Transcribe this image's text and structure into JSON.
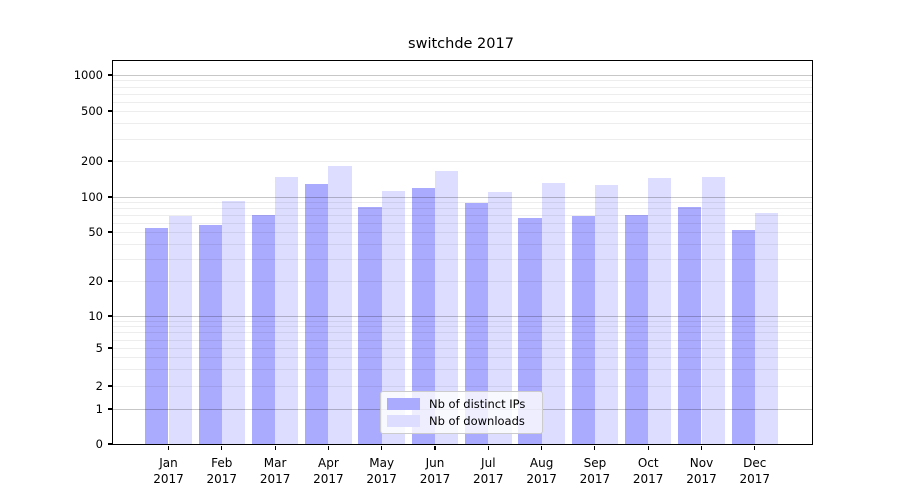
{
  "title": "switchde 2017",
  "chart_data": {
    "type": "bar",
    "title": "switchde 2017",
    "categories": [
      "Jan",
      "Feb",
      "Mar",
      "Apr",
      "May",
      "Jun",
      "Jul",
      "Aug",
      "Sep",
      "Oct",
      "Nov",
      "Dec"
    ],
    "categories_year": "2017",
    "series": [
      {
        "name": "Nb of distinct IPs",
        "color": "#aaaaff",
        "values": [
          54,
          58,
          70,
          128,
          82,
          118,
          89,
          66,
          68,
          70,
          82,
          52
        ]
      },
      {
        "name": "Nb of downloads",
        "color": "#ddddff",
        "values": [
          68,
          92,
          147,
          183,
          112,
          165,
          110,
          132,
          127,
          143,
          147,
          73
        ]
      }
    ],
    "yscale": "symlog",
    "ylim": [
      0,
      1000
    ],
    "yticks": [
      0,
      1,
      2,
      5,
      10,
      20,
      50,
      100,
      200,
      500,
      1000
    ],
    "grid": "horizontal major+minor, drawn above bars",
    "legend_position": "lower center"
  },
  "colors": {
    "background": "#ffffff",
    "axis": "#000000",
    "major_grid": "#c8c8c8",
    "minor_grid": "#ececec",
    "legend_border": "#cccccc"
  }
}
